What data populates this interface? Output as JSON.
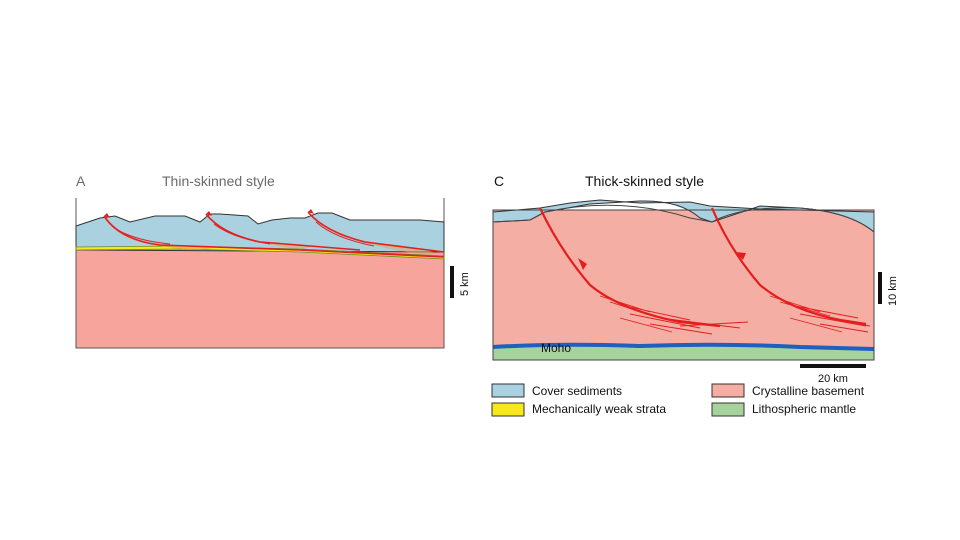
{
  "panel_a": {
    "letter": "A",
    "title": "Thin-skinned style",
    "scale_label": "5 km"
  },
  "panel_c": {
    "letter": "C",
    "title": "Thick-skinned style",
    "moho_label": "Moho",
    "vertical_scale_label": "10 km",
    "horizontal_scale_label": "20 km"
  },
  "legend": {
    "items": [
      {
        "label": "Cover sediments",
        "color": "#a9d1df"
      },
      {
        "label": "Crystalline basement",
        "color": "#f5aea4"
      },
      {
        "label": "Mechanically weak strata",
        "color": "#f7e81c"
      },
      {
        "label": "Lithospheric mantle",
        "color": "#a6d39b"
      }
    ]
  },
  "colors": {
    "cover_sediments": "#a9d1df",
    "basement": "#f5aea4",
    "basement_a": "#f7a59c",
    "weak_strata": "#f7e81c",
    "mantle": "#a6d39b",
    "fault": "#e41e1e",
    "moho": "#1f5fbf"
  }
}
